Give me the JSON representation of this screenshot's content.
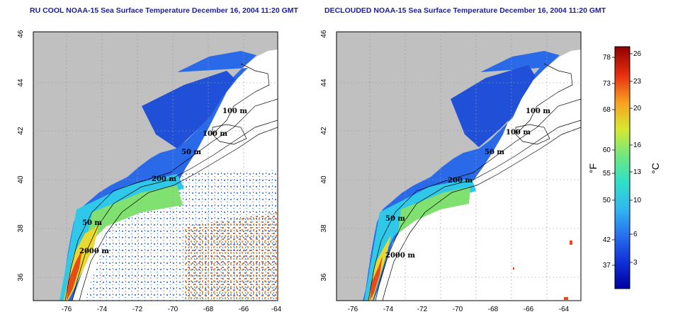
{
  "maps": [
    {
      "title": "RU COOL NOAA-15 Sea Surface Temperature December 16, 2004 11:20 GMT",
      "contour_labels": [
        "100 m",
        "100 m",
        "50 m",
        "200 m",
        "50 m",
        "2000 m"
      ]
    },
    {
      "title": "DECLOUDED NOAA-15 Sea Surface Temperature December 16, 2004 11:20 GMT",
      "contour_labels": [
        "100 m",
        "100 m",
        "50 m",
        "200 m",
        "50 m",
        "2000 m"
      ]
    }
  ],
  "lon_ticks": [
    "-76",
    "-74",
    "-72",
    "-70",
    "-68",
    "-66",
    "-64"
  ],
  "lat_ticks": [
    "46",
    "44",
    "42",
    "40",
    "38",
    "36"
  ],
  "colorbar": {
    "f_label": "°F",
    "c_label": "°C",
    "f_ticks": [
      "78",
      "73",
      "68",
      "60",
      "55",
      "50",
      "42",
      "37"
    ],
    "c_ticks": [
      "26",
      "23",
      "20",
      "16",
      "13",
      "10",
      "6",
      "3"
    ],
    "colors": [
      "#0000a0",
      "#1030d8",
      "#2870f0",
      "#30b8f0",
      "#30e0c8",
      "#70e880",
      "#d8e830",
      "#f8a020",
      "#e83010",
      "#900000"
    ]
  },
  "colors": {
    "land": "#c0c0c0",
    "title": "#1a1aa8"
  }
}
